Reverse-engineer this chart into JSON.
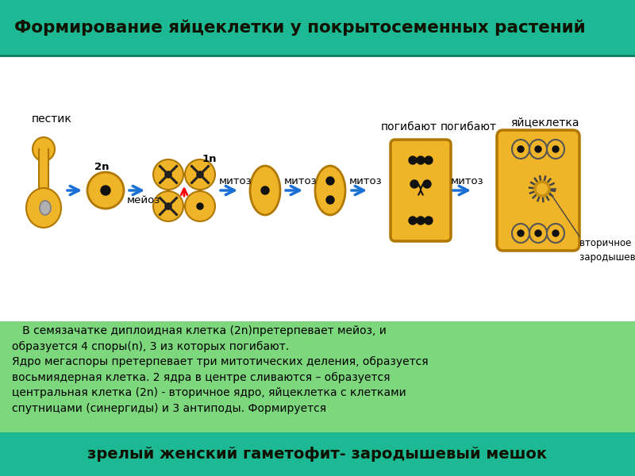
{
  "title": "Формирование яйцеклетки у покрытосеменных растений",
  "title_bg": "#1db894",
  "title_fg": "#111100",
  "diagram_bg": "#ffffff",
  "bottom_text_bg": "#7dd87d",
  "footer_bg": "#1db894",
  "footer_text": "зрелый женский гаметофит- зародышевый мешок",
  "footer_fg": "#111100",
  "description": "   В семязачатке диплоидная клетка (2n)претерпевает мейоз, и\nобразуется 4 споры(n), 3 из которых погибают.\nЯдро мегаспоры претерпевает три митотических деления, образуется\nвосьмиядерная клетка. 2 ядра в центре сливаются – образуется\nцентральная клетка (2n) - вторичное ядро, яйцеклетка с клетками\nспутницами (синергиды) и 3 антиподы. Формируется",
  "cell_color": "#f0b429",
  "cell_edge": "#b07800",
  "nucleus_color": "#111111",
  "arrow_color": "#1a6fd4",
  "label_pogibayut": "погибают",
  "label_yaicekletka": "яйцеклетка",
  "label_pestik": "пестик",
  "label_2n": "2n",
  "label_1n": "1n",
  "label_meyoz": "мейоз",
  "label_mitoz": "митоз",
  "label_vtorichnoe": "вторичное ядро\nзародышевого мешка",
  "bg_color": "#f0f0f0"
}
